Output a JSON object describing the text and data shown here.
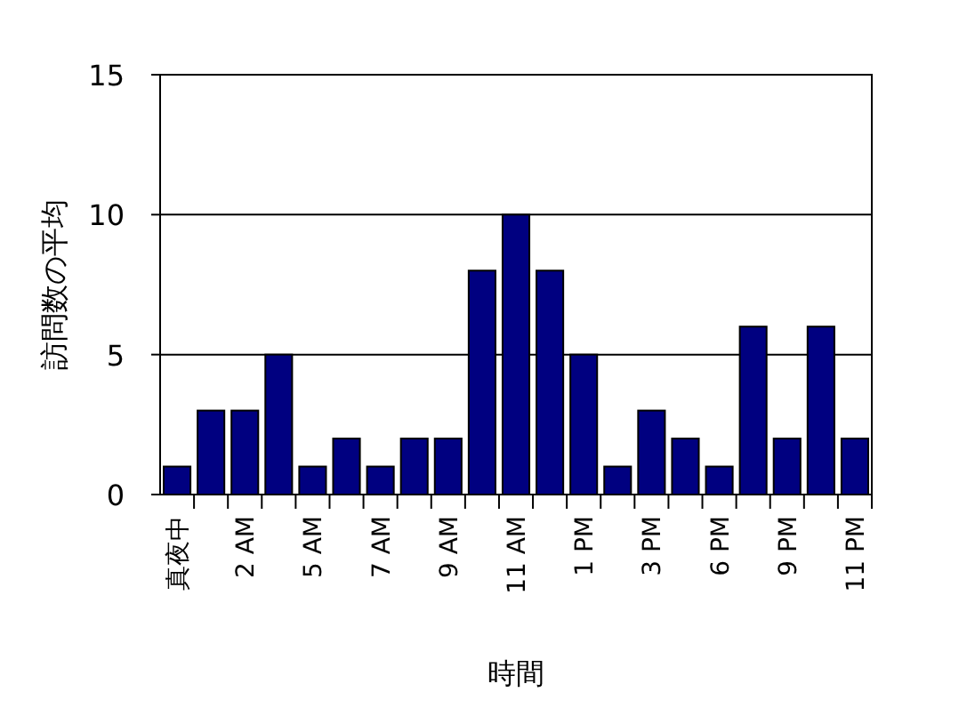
{
  "chart_data": {
    "type": "bar",
    "xlabel": "時間",
    "ylabel": "訪問数の平均",
    "categories": [
      "真夜中",
      null,
      "2 AM",
      null,
      "5 AM",
      null,
      "7 AM",
      null,
      "9 AM",
      null,
      "11 AM",
      null,
      "1 PM",
      null,
      "3 PM",
      null,
      "6 PM",
      null,
      "9 PM",
      null,
      "11 PM"
    ],
    "series": [
      {
        "color": "#000080",
        "values": [
          1,
          3,
          3,
          5,
          1,
          2,
          1,
          2,
          2,
          8,
          10,
          8,
          5,
          1,
          3,
          2,
          1,
          6,
          2,
          6,
          2
        ]
      }
    ],
    "ylim": [
      0,
      15
    ],
    "yticks": [
      0,
      5,
      10,
      15
    ],
    "grid": "y"
  }
}
